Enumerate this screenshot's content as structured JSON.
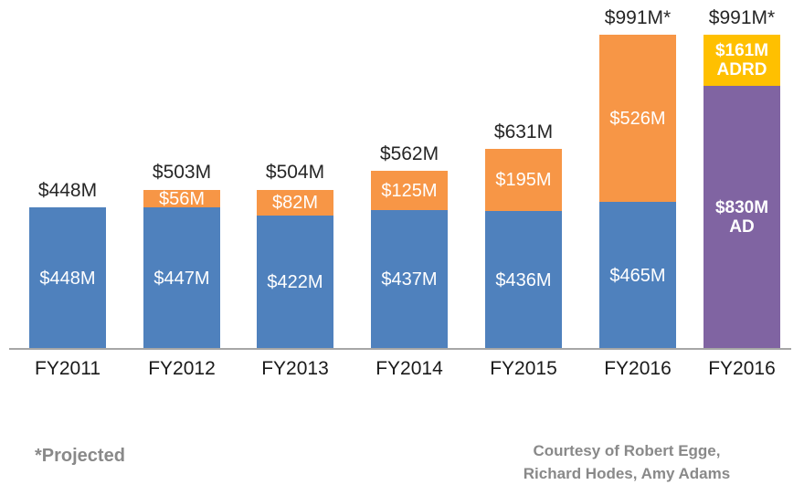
{
  "colors": {
    "blue": "#4F81BD",
    "orange": "#F79646",
    "purple": "#8064A2",
    "gold": "#FFC000",
    "axis_line": "#A6A6A6",
    "total_label_text": "#262626",
    "footer_gray": "#898989",
    "segment_label_text": "#FFFFFF"
  },
  "chart_data": {
    "type": "bar",
    "stacked": true,
    "unit": "$M (USD millions)",
    "title": "",
    "xlabel": "",
    "ylabel": "",
    "grid": false,
    "legend": "none",
    "categories": [
      "FY2011",
      "FY2012",
      "FY2013",
      "FY2014",
      "FY2015",
      "FY2016",
      "FY2016"
    ],
    "bars": [
      {
        "category": "FY2011",
        "total": 448,
        "total_label": "$448M",
        "segments": [
          {
            "value": 448,
            "label_lines": [
              "$448M"
            ],
            "color": "blue",
            "bold": false
          }
        ]
      },
      {
        "category": "FY2012",
        "total": 503,
        "total_label": "$503M",
        "segments": [
          {
            "value": 447,
            "label_lines": [
              "$447M"
            ],
            "color": "blue",
            "bold": false
          },
          {
            "value": 56,
            "label_lines": [
              "$56M"
            ],
            "color": "orange",
            "bold": false
          }
        ]
      },
      {
        "category": "FY2013",
        "total": 504,
        "total_label": "$504M",
        "segments": [
          {
            "value": 422,
            "label_lines": [
              "$422M"
            ],
            "color": "blue",
            "bold": false
          },
          {
            "value": 82,
            "label_lines": [
              "$82M"
            ],
            "color": "orange",
            "bold": false
          }
        ]
      },
      {
        "category": "FY2014",
        "total": 562,
        "total_label": "$562M",
        "segments": [
          {
            "value": 437,
            "label_lines": [
              "$437M"
            ],
            "color": "blue",
            "bold": false
          },
          {
            "value": 125,
            "label_lines": [
              "$125M"
            ],
            "color": "orange",
            "bold": false
          }
        ]
      },
      {
        "category": "FY2015",
        "total": 631,
        "total_label": "$631M",
        "segments": [
          {
            "value": 436,
            "label_lines": [
              "$436M"
            ],
            "color": "blue",
            "bold": false
          },
          {
            "value": 195,
            "label_lines": [
              "$195M"
            ],
            "color": "orange",
            "bold": false
          }
        ]
      },
      {
        "category": "FY2016",
        "total": 991,
        "total_label": "$991M*",
        "segments": [
          {
            "value": 465,
            "label_lines": [
              "$465M"
            ],
            "color": "blue",
            "bold": false
          },
          {
            "value": 526,
            "label_lines": [
              "$526M"
            ],
            "color": "orange",
            "bold": false
          }
        ]
      },
      {
        "category": "FY2016",
        "total": 991,
        "total_label": "$991M*",
        "segments": [
          {
            "value": 830,
            "label_lines": [
              "$830M",
              "AD"
            ],
            "color": "purple",
            "bold": true
          },
          {
            "value": 161,
            "label_lines": [
              "$161M",
              "ADRD"
            ],
            "color": "gold",
            "bold": true
          }
        ]
      }
    ]
  },
  "footnote": {
    "text": "*Projected"
  },
  "credit": {
    "line1": "Courtesy of Robert Egge,",
    "line2": "Richard Hodes, Amy Adams"
  }
}
